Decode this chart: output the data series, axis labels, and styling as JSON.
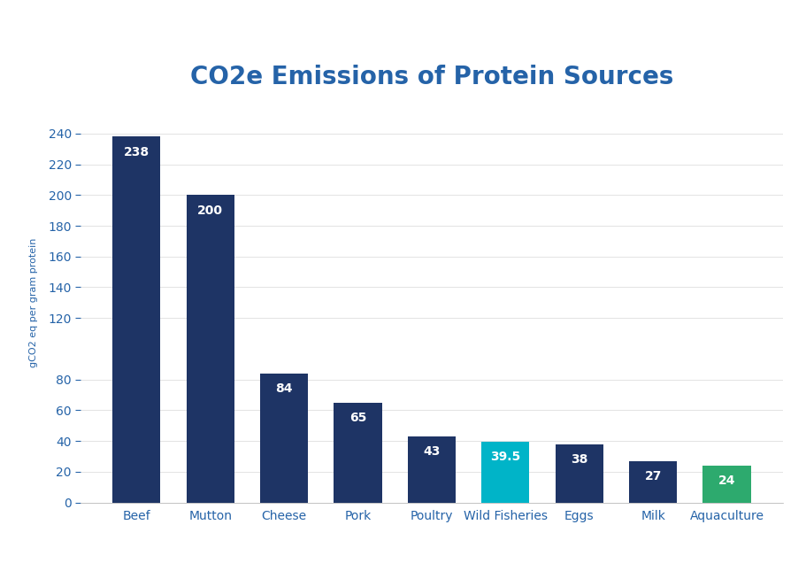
{
  "title": "CO2e Emissions of Protein Sources",
  "title_color": "#2563a8",
  "categories": [
    "Beef",
    "Mutton",
    "Cheese",
    "Pork",
    "Poultry",
    "Wild Fisheries",
    "Eggs",
    "Milk",
    "Aquaculture"
  ],
  "values": [
    238,
    200,
    84,
    65,
    43,
    39.5,
    38,
    27,
    24
  ],
  "bar_colors": [
    "#1e3465",
    "#1e3465",
    "#1e3465",
    "#1e3465",
    "#1e3465",
    "#00b4c8",
    "#1e3465",
    "#1e3465",
    "#2daa6e"
  ],
  "value_labels": [
    "238",
    "200",
    "84",
    "65",
    "43",
    "39.5",
    "38",
    "27",
    "24"
  ],
  "ylabel": "gCO2 eq per gram protein",
  "yticks": [
    0,
    20,
    40,
    60,
    80,
    120,
    140,
    160,
    180,
    200,
    220,
    240
  ],
  "ylim": [
    0,
    260
  ],
  "background_color": "#ffffff",
  "label_color": "#ffffff",
  "axis_color": "#2563a8",
  "tick_color": "#2563a8",
  "title_fontsize": 20,
  "label_fontsize": 10,
  "ylabel_fontsize": 8,
  "value_fontsize": 10,
  "bar_width": 0.65
}
